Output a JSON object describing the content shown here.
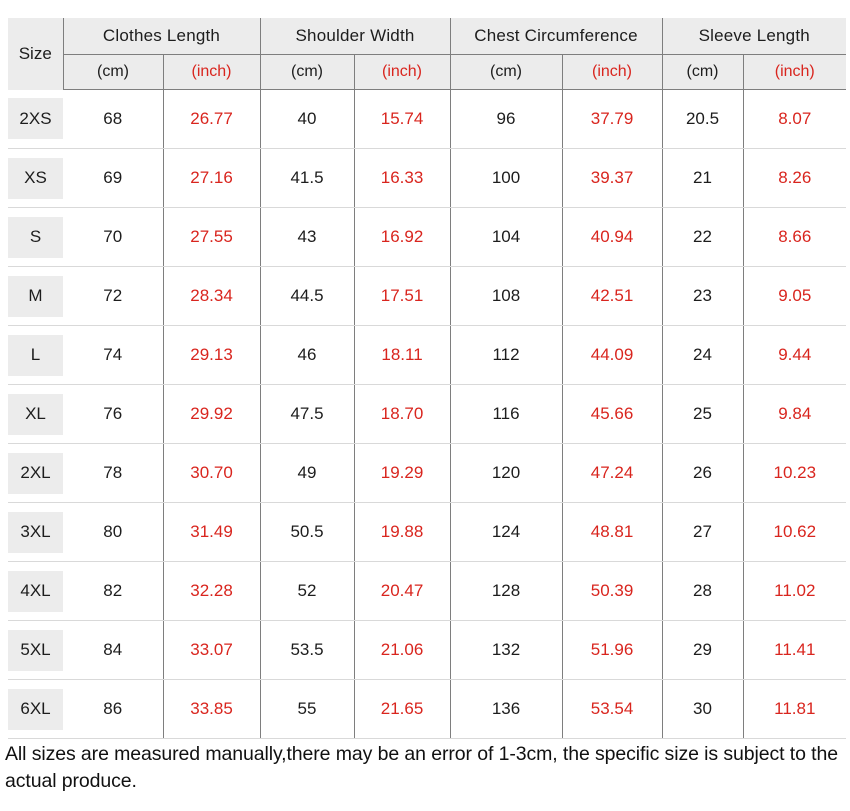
{
  "colors": {
    "accent_red": "#d9251e",
    "text_black": "#1d1d1d",
    "header_bg": "#ececec",
    "dark_grid_line": "#7e7e7e",
    "light_grid_line": "#d9d9d9",
    "page_bg": "#ffffff"
  },
  "chart_data": {
    "type": "table",
    "corner_label": "Size",
    "column_groups": [
      "Clothes Length",
      "Shoulder Width",
      "Chest Circumference",
      "Sleeve Length"
    ],
    "unit_labels": {
      "cm": "(cm)",
      "inch": "(inch)"
    },
    "rows": [
      {
        "size": "2XS",
        "values": [
          "68",
          "26.77",
          "40",
          "15.74",
          "96",
          "37.79",
          "20.5",
          "8.07"
        ]
      },
      {
        "size": "XS",
        "values": [
          "69",
          "27.16",
          "41.5",
          "16.33",
          "100",
          "39.37",
          "21",
          "8.26"
        ]
      },
      {
        "size": "S",
        "values": [
          "70",
          "27.55",
          "43",
          "16.92",
          "104",
          "40.94",
          "22",
          "8.66"
        ]
      },
      {
        "size": "M",
        "values": [
          "72",
          "28.34",
          "44.5",
          "17.51",
          "108",
          "42.51",
          "23",
          "9.05"
        ]
      },
      {
        "size": "L",
        "values": [
          "74",
          "29.13",
          "46",
          "18.11",
          "112",
          "44.09",
          "24",
          "9.44"
        ]
      },
      {
        "size": "XL",
        "values": [
          "76",
          "29.92",
          "47.5",
          "18.70",
          "116",
          "45.66",
          "25",
          "9.84"
        ]
      },
      {
        "size": "2XL",
        "values": [
          "78",
          "30.70",
          "49",
          "19.29",
          "120",
          "47.24",
          "26",
          "10.23"
        ]
      },
      {
        "size": "3XL",
        "values": [
          "80",
          "31.49",
          "50.5",
          "19.88",
          "124",
          "48.81",
          "27",
          "10.62"
        ]
      },
      {
        "size": "4XL",
        "values": [
          "82",
          "32.28",
          "52",
          "20.47",
          "128",
          "50.39",
          "28",
          "11.02"
        ]
      },
      {
        "size": "5XL",
        "values": [
          "84",
          "33.07",
          "53.5",
          "21.06",
          "132",
          "51.96",
          "29",
          "11.41"
        ]
      },
      {
        "size": "6XL",
        "values": [
          "86",
          "33.85",
          "55",
          "21.65",
          "136",
          "53.54",
          "30",
          "11.81"
        ]
      }
    ]
  },
  "footer": {
    "text": "All sizes are measured manually,there may be an error of 1-3cm, the specific size is subject to the actual produce."
  }
}
